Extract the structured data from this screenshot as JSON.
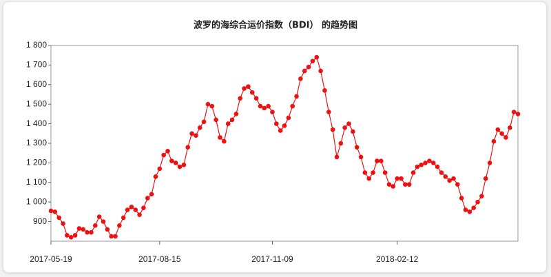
{
  "chart_data": {
    "type": "line",
    "title": "波罗的海综合运价指数（BDI） 的趋势图",
    "categories": [
      "2017-05-19",
      null,
      null,
      null,
      null,
      null,
      null,
      null,
      null,
      null,
      null,
      null,
      null,
      null,
      null,
      null,
      null,
      null,
      null,
      null,
      null,
      null,
      null,
      null,
      null,
      null,
      null,
      "2017-08-15",
      null,
      null,
      null,
      null,
      null,
      null,
      null,
      null,
      null,
      null,
      null,
      null,
      null,
      null,
      null,
      null,
      null,
      null,
      null,
      null,
      null,
      null,
      null,
      null,
      null,
      null,
      null,
      "2017-11-09",
      null,
      null,
      null,
      null,
      null,
      null,
      null,
      null,
      null,
      null,
      null,
      null,
      null,
      null,
      null,
      null,
      null,
      null,
      null,
      null,
      null,
      null,
      null,
      null,
      null,
      null,
      null,
      null,
      null,
      null,
      "2018-02-12",
      null,
      null,
      null,
      null,
      null,
      null,
      null,
      null,
      null,
      null,
      null,
      null,
      null,
      null,
      null,
      null,
      null,
      null,
      null,
      null,
      null,
      null,
      null,
      null,
      null,
      null,
      null,
      null,
      null,
      null
    ],
    "series": [
      {
        "color": "#ee1111",
        "values": [
          955,
          950,
          920,
          890,
          830,
          820,
          830,
          865,
          860,
          845,
          845,
          880,
          925,
          900,
          860,
          825,
          825,
          880,
          920,
          960,
          975,
          960,
          935,
          970,
          1020,
          1040,
          1130,
          1170,
          1240,
          1260,
          1210,
          1200,
          1180,
          1190,
          1280,
          1350,
          1340,
          1380,
          1410,
          1500,
          1490,
          1420,
          1330,
          1310,
          1400,
          1420,
          1450,
          1530,
          1580,
          1590,
          1560,
          1530,
          1490,
          1480,
          1490,
          1460,
          1400,
          1365,
          1390,
          1430,
          1490,
          1540,
          1630,
          1670,
          1690,
          1720,
          1740,
          1670,
          1570,
          1460,
          1370,
          1230,
          1300,
          1380,
          1400,
          1360,
          1280,
          1230,
          1150,
          1120,
          1150,
          1210,
          1210,
          1150,
          1090,
          1080,
          1120,
          1120,
          1090,
          1090,
          1150,
          1180,
          1190,
          1200,
          1210,
          1200,
          1180,
          1150,
          1130,
          1110,
          1120,
          1090,
          1020,
          960,
          950,
          970,
          1000,
          1030,
          1120,
          1200,
          1310,
          1370,
          1350,
          1330,
          1380,
          1460,
          1450
        ]
      }
    ],
    "ylim": [
      800,
      1800
    ],
    "yticks": [
      900,
      {
        "value": 1000,
        "label": "1 000"
      },
      {
        "value": 1100,
        "label": "1 100"
      },
      {
        "value": 1200,
        "label": "1 200"
      },
      {
        "value": 1300,
        "label": "1 300"
      },
      {
        "value": 1400,
        "label": "1 400"
      },
      {
        "value": 1500,
        "label": "1 500"
      },
      {
        "value": 1600,
        "label": "1 600"
      },
      {
        "value": 1700,
        "label": "1 700"
      },
      {
        "value": 1800,
        "label": "1 800"
      }
    ],
    "grid": false
  }
}
